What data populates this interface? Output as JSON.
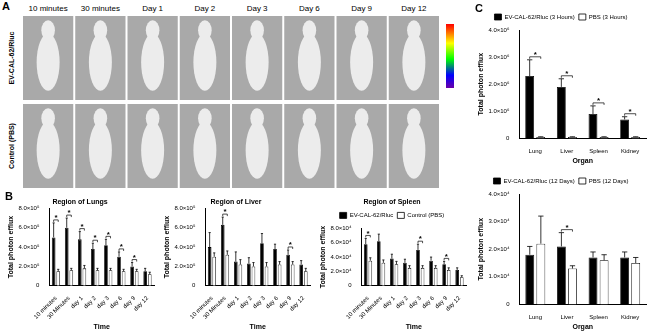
{
  "imaging": {
    "panel": "A",
    "columns": [
      "10 minutes",
      "30 minutes",
      "Day 1",
      "Day 2",
      "Day 3",
      "Day 6",
      "Day 9",
      "Day 12"
    ],
    "rows": [
      "EV-CAL-62/Rluc",
      "Control (PBS)"
    ]
  },
  "chart_data": [
    {
      "type": "bar",
      "panel": "B",
      "title": "Region of Lungs",
      "x_label": "Time",
      "y_label": "Total photon efflux",
      "categories": [
        "10 minutes",
        "30 Minutes",
        "day 1",
        "day 2",
        "day 3",
        "day 6",
        "day 9",
        "day 12"
      ],
      "series": [
        {
          "name": "EV-CAL-62/Rluc",
          "color": "#000000",
          "values": [
            500000,
            600000,
            480000,
            380000,
            420000,
            300000,
            200000,
            150000
          ],
          "errors": [
            150000,
            100000,
            80000,
            60000,
            60000,
            50000,
            40000,
            30000
          ]
        },
        {
          "name": "Control (PBS)",
          "color": "#ffffff",
          "values": [
            150000,
            160000,
            180000,
            160000,
            160000,
            150000,
            150000,
            120000
          ],
          "errors": [
            20000,
            20000,
            30000,
            20000,
            20000,
            20000,
            20000,
            20000
          ]
        }
      ],
      "annotations": [
        {
          "category": "10 minutes",
          "text": "*"
        },
        {
          "category": "30 Minutes",
          "text": "*"
        },
        {
          "category": "day 1",
          "text": "*"
        },
        {
          "category": "day 2",
          "text": "*"
        },
        {
          "category": "day 3",
          "text": "*"
        },
        {
          "category": "day 6",
          "text": "*"
        },
        {
          "category": "day 9",
          "text": "*"
        }
      ],
      "ylim": [
        0,
        800000
      ],
      "yticks": [
        0,
        {
          "value": 200000,
          "label": "2.0×10⁵"
        },
        {
          "value": 400000,
          "label": "4.0×10⁵"
        },
        {
          "value": 600000,
          "label": "6.0×10⁵"
        },
        {
          "value": 800000,
          "label": "8.0×10⁵"
        }
      ],
      "grid": false
    },
    {
      "type": "bar",
      "title": "Region of Liver",
      "x_label": "Time",
      "y_label": "Total photon efflux",
      "categories": [
        "10 minutes",
        "30 Minutes",
        "day 1",
        "day 2",
        "day 3",
        "day 6",
        "day 9",
        "day 12"
      ],
      "series": [
        {
          "name": "EV-CAL-62/Rluc",
          "color": "#000000",
          "values": [
            400000,
            630000,
            250000,
            230000,
            440000,
            380000,
            320000,
            220000
          ],
          "errors": [
            150000,
            80000,
            100000,
            60000,
            100000,
            50000,
            50000,
            40000
          ]
        },
        {
          "name": "Control (PBS)",
          "color": "#ffffff",
          "values": [
            300000,
            320000,
            220000,
            200000,
            200000,
            220000,
            220000,
            150000
          ],
          "errors": [
            40000,
            40000,
            50000,
            40000,
            40000,
            30000,
            30000,
            30000
          ]
        }
      ],
      "annotations": [
        {
          "category": "30 Minutes",
          "text": "*"
        },
        {
          "category": "day 9",
          "text": "*"
        }
      ],
      "ylim": [
        0,
        800000
      ],
      "yticks": [
        0,
        {
          "value": 200000,
          "label": "2.0×10⁵"
        },
        {
          "value": 400000,
          "label": "4.0×10⁵"
        },
        {
          "value": 600000,
          "label": "6.0×10⁵"
        },
        {
          "value": 800000,
          "label": "8.0×10⁵"
        }
      ],
      "grid": false
    },
    {
      "type": "bar",
      "title": "Region of Spleen",
      "x_label": "Time",
      "y_label": "Total photon efflux",
      "legend": "top",
      "categories": [
        "10 minutes",
        "30 Minutes",
        "day 1",
        "day 2",
        "day 3",
        "day 6",
        "day 9",
        "day 12"
      ],
      "series": [
        {
          "name": "EV-CAL-62/Rluc",
          "color": "#000000",
          "values": [
            58000,
            62000,
            38000,
            32000,
            50000,
            35000,
            30000,
            22000
          ],
          "errors": [
            8000,
            10000,
            6000,
            5000,
            8000,
            5000,
            4000,
            3000
          ]
        },
        {
          "name": "Control (PBS)",
          "color": "#ffffff",
          "values": [
            35000,
            32000,
            30000,
            25000,
            25000,
            25000,
            22000,
            12000
          ],
          "errors": [
            4000,
            4000,
            4000,
            3000,
            3000,
            3000,
            3000,
            2000
          ]
        }
      ],
      "annotations": [
        {
          "category": "10 minutes",
          "text": "*"
        },
        {
          "category": "day 3",
          "text": "*"
        },
        {
          "category": "day 9",
          "text": "*"
        }
      ],
      "ylim": [
        0,
        80000
      ],
      "yticks": [
        0,
        {
          "value": 20000,
          "label": "2.0×10⁴"
        },
        {
          "value": 40000,
          "label": "4.0×10⁴"
        },
        {
          "value": 60000,
          "label": "6.0×10⁴"
        },
        {
          "value": 80000,
          "label": "8.0×10⁴"
        }
      ],
      "grid": false
    },
    {
      "type": "bar",
      "panel": "C",
      "x_label": "Organ",
      "y_label": "Total photon efflux",
      "legend": "top",
      "categories": [
        "Lung",
        "Liver",
        "Spleen",
        "Kidney"
      ],
      "series": [
        {
          "name": "EV-CAL-62/Rluc (3 Hours)",
          "color": "#000000",
          "values": [
            2300000,
            1900000,
            900000,
            700000
          ],
          "errors": [
            600000,
            300000,
            300000,
            100000
          ]
        },
        {
          "name": "PBS (3 Hours)",
          "color": "#ffffff",
          "values": [
            50000,
            50000,
            50000,
            50000
          ],
          "errors": [
            10000,
            10000,
            10000,
            10000
          ]
        }
      ],
      "annotations": [
        {
          "category": "Lung",
          "text": "*"
        },
        {
          "category": "Liver",
          "text": "*"
        },
        {
          "category": "Spleen",
          "text": "*"
        },
        {
          "category": "Kidney",
          "text": "*"
        }
      ],
      "ylim": [
        0,
        4000000
      ],
      "yticks": [
        0,
        {
          "value": 1000000,
          "label": "1.0×10⁶"
        },
        {
          "value": 2000000,
          "label": "2.0×10⁶"
        },
        {
          "value": 3000000,
          "label": "3.0×10⁶"
        },
        {
          "value": 4000000,
          "label": "4.0×10⁶"
        }
      ],
      "grid": false
    },
    {
      "type": "bar",
      "x_label": "Organ",
      "y_label": "Total photon efflux",
      "legend": "top",
      "categories": [
        "Lung",
        "Liver",
        "Spleen",
        "Kidney"
      ],
      "series": [
        {
          "name": "EV-CAL-62/Rluc (12 Days)",
          "color": "#000000",
          "values": [
            18000,
            21000,
            17000,
            17000
          ],
          "errors": [
            3000,
            5000,
            2000,
            2000
          ]
        },
        {
          "name": "PBS (12 Days)",
          "color": "#ffffff",
          "values": [
            22000,
            13000,
            16000,
            15000
          ],
          "errors": [
            10000,
            1000,
            2000,
            2000
          ]
        }
      ],
      "annotations": [
        {
          "category": "Liver",
          "text": "*"
        }
      ],
      "ylim": [
        0,
        40000
      ],
      "yticks": [
        0,
        {
          "value": 10000,
          "label": "1.0×10⁴"
        },
        {
          "value": 20000,
          "label": "2.0×10⁴"
        },
        {
          "value": 30000,
          "label": "3.0×10⁴"
        },
        {
          "value": 40000,
          "label": "4.0×10⁴"
        }
      ],
      "grid": false
    }
  ]
}
